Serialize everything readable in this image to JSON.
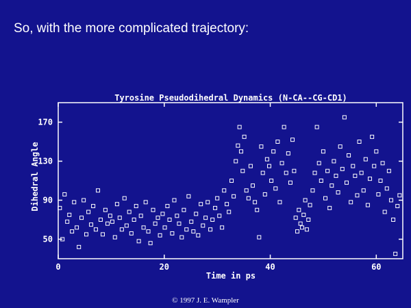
{
  "slide": {
    "heading": "So, with the more complicated trajectory:",
    "footer": "© 1997 J. E. Wampler"
  },
  "chart_data": {
    "type": "scatter",
    "title": "Tyrosine Pseudodihedral Dynamics (N-CA--CG-CD1)",
    "x_label": "Time in ps",
    "y_label": "Dihedral Angle",
    "color": "#ffffff",
    "xlim": [
      0,
      65
    ],
    "xticks": [
      0,
      20,
      40,
      60
    ],
    "ylim": [
      30,
      190
    ],
    "yticks": [
      50,
      90,
      130,
      170
    ],
    "x": [
      0.3,
      0.8,
      1.2,
      1.7,
      2.1,
      2.6,
      3.0,
      3.5,
      3.9,
      4.4,
      4.8,
      5.3,
      5.7,
      6.2,
      6.6,
      7.1,
      7.5,
      8.0,
      8.4,
      8.9,
      9.3,
      9.8,
      10.2,
      10.7,
      11.1,
      11.6,
      12.0,
      12.5,
      12.9,
      13.4,
      13.8,
      14.3,
      14.7,
      15.2,
      15.6,
      16.1,
      16.5,
      17.0,
      17.4,
      17.9,
      18.3,
      18.8,
      19.2,
      19.7,
      20.1,
      20.6,
      21.0,
      21.5,
      21.9,
      22.4,
      22.8,
      23.3,
      23.7,
      24.2,
      24.6,
      25.1,
      25.5,
      26.0,
      26.4,
      26.9,
      27.3,
      27.8,
      28.2,
      28.7,
      29.1,
      29.6,
      30.0,
      30.4,
      30.9,
      31.3,
      31.8,
      32.2,
      32.7,
      33.1,
      33.5,
      33.9,
      34.2,
      34.5,
      34.8,
      35.1,
      35.5,
      35.9,
      36.3,
      36.7,
      37.1,
      37.5,
      37.9,
      38.3,
      38.6,
      39.0,
      39.4,
      39.8,
      40.2,
      40.6,
      41.0,
      41.4,
      41.8,
      42.2,
      42.6,
      43.0,
      43.4,
      43.8,
      44.2,
      44.5,
      44.8,
      45.1,
      45.4,
      45.7,
      46.0,
      46.3,
      46.6,
      46.9,
      47.2,
      47.5,
      48.0,
      48.4,
      48.8,
      49.2,
      49.6,
      50.0,
      50.4,
      50.8,
      51.2,
      51.6,
      52.0,
      52.4,
      52.8,
      53.2,
      53.6,
      54.0,
      54.4,
      54.8,
      55.2,
      55.6,
      56.0,
      56.4,
      56.8,
      57.2,
      57.6,
      58.0,
      58.4,
      58.8,
      59.2,
      59.6,
      60.0,
      60.4,
      60.8,
      61.2,
      61.6,
      62.0,
      62.4,
      62.8,
      63.2,
      63.6,
      64.0,
      64.4
    ],
    "values": [
      82,
      50,
      96,
      68,
      75,
      58,
      88,
      62,
      42,
      72,
      90,
      55,
      78,
      65,
      84,
      60,
      100,
      70,
      55,
      80,
      66,
      74,
      68,
      52,
      86,
      72,
      60,
      92,
      64,
      78,
      56,
      70,
      84,
      48,
      74,
      62,
      88,
      58,
      46,
      80,
      66,
      72,
      54,
      76,
      62,
      84,
      70,
      56,
      90,
      74,
      66,
      52,
      80,
      60,
      94,
      68,
      58,
      76,
      54,
      86,
      64,
      72,
      88,
      60,
      70,
      82,
      92,
      74,
      62,
      100,
      86,
      78,
      110,
      94,
      130,
      146,
      165,
      140,
      120,
      155,
      100,
      92,
      125,
      105,
      88,
      80,
      52,
      145,
      118,
      96,
      132,
      125,
      110,
      140,
      102,
      150,
      88,
      128,
      165,
      118,
      138,
      108,
      152,
      120,
      72,
      58,
      80,
      66,
      62,
      75,
      90,
      60,
      70,
      85,
      100,
      118,
      165,
      128,
      110,
      140,
      92,
      120,
      82,
      105,
      130,
      115,
      98,
      145,
      122,
      175,
      108,
      136,
      88,
      125,
      115,
      95,
      150,
      118,
      100,
      132,
      85,
      112,
      155,
      125,
      140,
      96,
      110,
      128,
      78,
      102,
      120,
      90,
      70,
      35,
      84,
      95
    ]
  }
}
